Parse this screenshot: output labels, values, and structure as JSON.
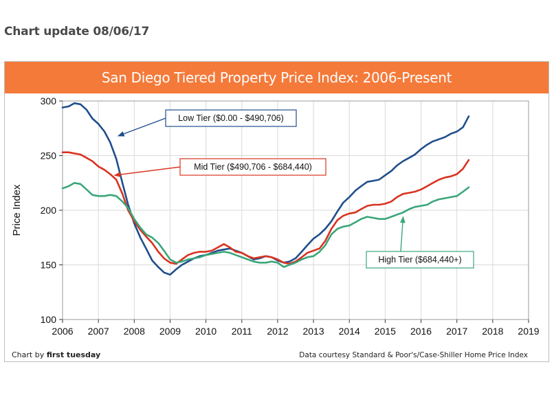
{
  "page": {
    "heading": "Chart update 08/06/17"
  },
  "chart_data": {
    "type": "line",
    "title": "San Diego Tiered Property Price Index: 2006-Present",
    "ylabel": "Price Index",
    "xlabel": "",
    "xlim": [
      2006,
      2019
    ],
    "ylim": [
      100,
      300
    ],
    "x_ticks": [
      "2006",
      "2007",
      "2008",
      "2009",
      "2010",
      "2011",
      "2012",
      "2013",
      "2014",
      "2015",
      "2016",
      "2017",
      "2018",
      "2019"
    ],
    "y_ticks": [
      "100",
      "150",
      "200",
      "250",
      "300"
    ],
    "grid": true,
    "series": [
      {
        "name": "Low Tier ($0.00 - $490,706)",
        "color": "#1f4e8c",
        "x": [
          2006.0,
          2006.17,
          2006.33,
          2006.5,
          2006.67,
          2006.83,
          2007.0,
          2007.17,
          2007.33,
          2007.5,
          2007.67,
          2007.83,
          2008.0,
          2008.17,
          2008.33,
          2008.5,
          2008.67,
          2008.83,
          2009.0,
          2009.17,
          2009.33,
          2009.5,
          2009.67,
          2009.83,
          2010.0,
          2010.17,
          2010.33,
          2010.5,
          2010.67,
          2010.83,
          2011.0,
          2011.17,
          2011.33,
          2011.5,
          2011.67,
          2011.83,
          2012.0,
          2012.17,
          2012.33,
          2012.5,
          2012.67,
          2012.83,
          2013.0,
          2013.17,
          2013.33,
          2013.5,
          2013.67,
          2013.83,
          2014.0,
          2014.17,
          2014.33,
          2014.5,
          2014.67,
          2014.83,
          2015.0,
          2015.17,
          2015.33,
          2015.5,
          2015.67,
          2015.83,
          2016.0,
          2016.17,
          2016.33,
          2016.5,
          2016.67,
          2016.83,
          2017.0,
          2017.17,
          2017.33
        ],
        "values": [
          294,
          295,
          298,
          297,
          292,
          284,
          279,
          272,
          262,
          247,
          225,
          205,
          188,
          175,
          165,
          154,
          148,
          143,
          141,
          146,
          150,
          153,
          156,
          158,
          159,
          161,
          163,
          164,
          165,
          163,
          161,
          158,
          155,
          156,
          158,
          157,
          154,
          152,
          153,
          156,
          162,
          168,
          174,
          178,
          183,
          190,
          199,
          207,
          212,
          218,
          222,
          226,
          227,
          228,
          232,
          236,
          241,
          245,
          248,
          251,
          256,
          260,
          263,
          265,
          267,
          270,
          272,
          276,
          286
        ]
      },
      {
        "name": "Mid Tier ($490,706 - $684,440)",
        "color": "#d9321f",
        "x": [
          2006.0,
          2006.17,
          2006.33,
          2006.5,
          2006.67,
          2006.83,
          2007.0,
          2007.17,
          2007.33,
          2007.5,
          2007.67,
          2007.83,
          2008.0,
          2008.17,
          2008.33,
          2008.5,
          2008.67,
          2008.83,
          2009.0,
          2009.17,
          2009.33,
          2009.5,
          2009.67,
          2009.83,
          2010.0,
          2010.17,
          2010.33,
          2010.5,
          2010.67,
          2010.83,
          2011.0,
          2011.17,
          2011.33,
          2011.5,
          2011.67,
          2011.83,
          2012.0,
          2012.17,
          2012.33,
          2012.5,
          2012.67,
          2012.83,
          2013.0,
          2013.17,
          2013.33,
          2013.5,
          2013.67,
          2013.83,
          2014.0,
          2014.17,
          2014.33,
          2014.5,
          2014.67,
          2014.83,
          2015.0,
          2015.17,
          2015.33,
          2015.5,
          2015.67,
          2015.83,
          2016.0,
          2016.17,
          2016.33,
          2016.5,
          2016.67,
          2016.83,
          2017.0,
          2017.17,
          2017.33
        ],
        "values": [
          253,
          253,
          252,
          251,
          248,
          245,
          240,
          237,
          233,
          228,
          215,
          200,
          190,
          182,
          176,
          170,
          162,
          156,
          152,
          151,
          155,
          159,
          161,
          162,
          162,
          163,
          166,
          169,
          166,
          162,
          161,
          158,
          156,
          157,
          158,
          157,
          155,
          152,
          151,
          153,
          157,
          161,
          163,
          165,
          172,
          183,
          191,
          195,
          197,
          198,
          201,
          204,
          205,
          205,
          206,
          208,
          212,
          215,
          216,
          217,
          219,
          222,
          225,
          228,
          230,
          231,
          233,
          238,
          246
        ]
      },
      {
        "name": "High Tier ($684,440+)",
        "color": "#3aa67a",
        "x": [
          2006.0,
          2006.17,
          2006.33,
          2006.5,
          2006.67,
          2006.83,
          2007.0,
          2007.17,
          2007.33,
          2007.5,
          2007.67,
          2007.83,
          2008.0,
          2008.17,
          2008.33,
          2008.5,
          2008.67,
          2008.83,
          2009.0,
          2009.17,
          2009.33,
          2009.5,
          2009.67,
          2009.83,
          2010.0,
          2010.17,
          2010.33,
          2010.5,
          2010.67,
          2010.83,
          2011.0,
          2011.17,
          2011.33,
          2011.5,
          2011.67,
          2011.83,
          2012.0,
          2012.17,
          2012.33,
          2012.5,
          2012.67,
          2012.83,
          2013.0,
          2013.17,
          2013.33,
          2013.5,
          2013.67,
          2013.83,
          2014.0,
          2014.17,
          2014.33,
          2014.5,
          2014.67,
          2014.83,
          2015.0,
          2015.17,
          2015.33,
          2015.5,
          2015.67,
          2015.83,
          2016.0,
          2016.17,
          2016.33,
          2016.5,
          2016.67,
          2016.83,
          2017.0,
          2017.17,
          2017.33
        ],
        "values": [
          220,
          222,
          225,
          224,
          219,
          214,
          213,
          213,
          214,
          213,
          208,
          202,
          192,
          184,
          178,
          175,
          170,
          163,
          155,
          152,
          153,
          155,
          156,
          157,
          159,
          160,
          161,
          162,
          161,
          159,
          157,
          155,
          153,
          152,
          152,
          153,
          152,
          148,
          150,
          152,
          155,
          157,
          158,
          162,
          168,
          178,
          183,
          185,
          186,
          189,
          192,
          194,
          193,
          192,
          192,
          194,
          196,
          198,
          201,
          203,
          204,
          205,
          208,
          210,
          211,
          212,
          213,
          217,
          221
        ]
      }
    ],
    "annotations": [
      {
        "text": "Low Tier ($0.00 - $490,706)",
        "series": 0,
        "point_x": 2007.55,
        "point_y": 268
      },
      {
        "text": "Mid Tier ($490,706 - $684,440)",
        "series": 1,
        "point_x": 2007.45,
        "point_y": 232
      },
      {
        "text": "High Tier ($684,440+)",
        "series": 2,
        "point_x": 2015.5,
        "point_y": 194
      }
    ]
  },
  "footer": {
    "credit_prefix": "Chart by ",
    "credit_name": "first tuesday",
    "source": "Data courtesy Standard & Poor's/Case-Shiller Home Price Index"
  }
}
